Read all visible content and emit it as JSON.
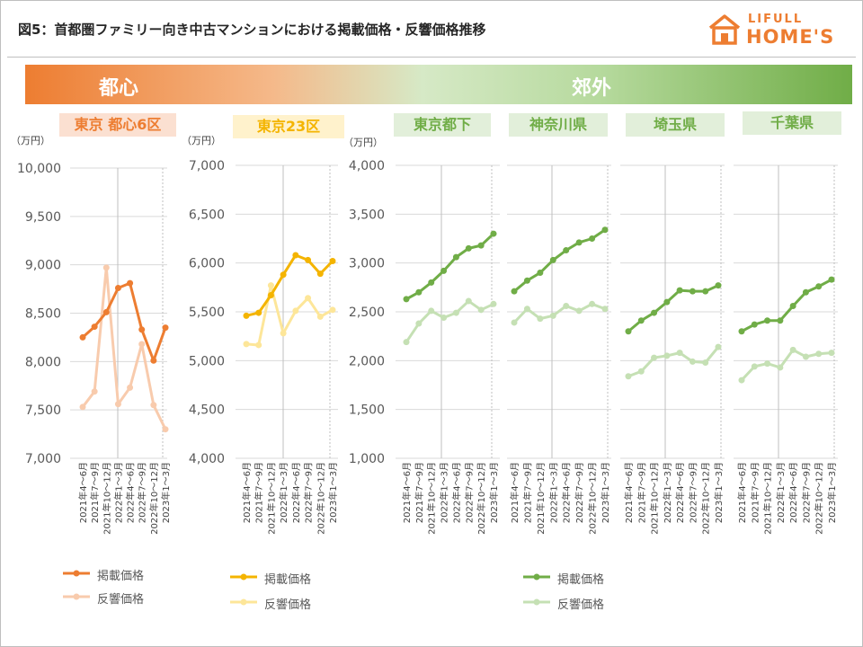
{
  "title": "図5：首都圏ファミリー向き中古マンションにおける掲載価格・反響価格推移",
  "logo": {
    "line1": "LIFULL",
    "line2": "HOME'S"
  },
  "band": {
    "left_label": "都心",
    "right_label": "郊外"
  },
  "region_label_colors": {
    "tokyo6": {
      "bg": "#fbe0d1",
      "fg": "#ed7d31"
    },
    "tokyo23": {
      "bg": "#fff2cc",
      "fg": "#f4b400"
    },
    "green": {
      "bg": "#e2efda",
      "fg": "#70ad47"
    }
  },
  "unit_label": "（万円）",
  "series_names": [
    "掲載価格",
    "反響価格"
  ],
  "chart_data": [
    {
      "type": "line",
      "region": "東京 都心6区",
      "x": [
        "2021年4～6月",
        "2021年7～9月",
        "2021年10～12月",
        "2022年1～3月",
        "2022年4～6月",
        "2022年7～9月",
        "2022年10～12月",
        "2023年1～3月"
      ],
      "ylim": [
        7000,
        10000
      ],
      "yticks": [
        "7,000",
        "7,500",
        "8,000",
        "8,500",
        "9,000",
        "9,500",
        "10,000"
      ],
      "colors": [
        "#ed7d31",
        "#f8cbad"
      ],
      "series": [
        {
          "name": "掲載価格",
          "values": [
            8250,
            8360,
            8510,
            8760,
            8810,
            8330,
            8010,
            8350
          ]
        },
        {
          "name": "反響価格",
          "values": [
            7530,
            7690,
            8970,
            7560,
            7730,
            8180,
            7550,
            7300
          ]
        }
      ]
    },
    {
      "type": "line",
      "region": "東京23区",
      "x": [
        "2021年4～6月",
        "2021年7～9月",
        "2021年10～12月",
        "2022年1～3月",
        "2022年4～6月",
        "2022年7～9月",
        "2022年10～12月",
        "2023年1～3月"
      ],
      "ylim": [
        4000,
        7000
      ],
      "yticks": [
        "4,000",
        "4,500",
        "5,000",
        "5,500",
        "6,000",
        "6,500",
        "7,000"
      ],
      "colors": [
        "#f4b400",
        "#fde699"
      ],
      "series": [
        {
          "name": "掲載価格",
          "values": [
            5460,
            5490,
            5670,
            5880,
            6080,
            6030,
            5890,
            6020
          ]
        },
        {
          "name": "反響価格",
          "values": [
            5170,
            5160,
            5770,
            5280,
            5510,
            5640,
            5450,
            5520
          ]
        }
      ]
    },
    {
      "type": "line",
      "region": "東京都下",
      "x": [
        "2021年4～6月",
        "2021年7～9月",
        "2021年10～12月",
        "2022年1～3月",
        "2022年4～6月",
        "2022年7～9月",
        "2022年10～12月",
        "2023年1～3月"
      ],
      "ylim": [
        1000,
        4000
      ],
      "yticks": [
        "1,000",
        "1,500",
        "2,000",
        "2,500",
        "3,000",
        "3,500",
        "4,000"
      ],
      "colors": [
        "#70ad47",
        "#c5e0b4"
      ],
      "series": [
        {
          "name": "掲載価格",
          "values": [
            2630,
            2700,
            2800,
            2920,
            3060,
            3150,
            3180,
            3300
          ]
        },
        {
          "name": "反響価格",
          "values": [
            2190,
            2380,
            2510,
            2440,
            2490,
            2610,
            2520,
            2580
          ]
        }
      ]
    },
    {
      "type": "line",
      "region": "神奈川県",
      "x": [
        "2021年4～6月",
        "2021年7～9月",
        "2021年10～12月",
        "2022年1～3月",
        "2022年4～6月",
        "2022年7～9月",
        "2022年10～12月",
        "2023年1～3月"
      ],
      "ylim": [
        1000,
        4000
      ],
      "yticks": [
        "1,000",
        "1,500",
        "2,000",
        "2,500",
        "3,000",
        "3,500",
        "4,000"
      ],
      "colors": [
        "#70ad47",
        "#c5e0b4"
      ],
      "series": [
        {
          "name": "掲載価格",
          "values": [
            2710,
            2820,
            2900,
            3030,
            3130,
            3210,
            3250,
            3340
          ]
        },
        {
          "name": "反響価格",
          "values": [
            2390,
            2530,
            2430,
            2460,
            2560,
            2510,
            2580,
            2530
          ]
        }
      ]
    },
    {
      "type": "line",
      "region": "埼玉県",
      "x": [
        "2021年4～6月",
        "2021年7～9月",
        "2021年10～12月",
        "2022年1～3月",
        "2022年4～6月",
        "2022年7～9月",
        "2022年10～12月",
        "2023年1～3月"
      ],
      "ylim": [
        1000,
        4000
      ],
      "yticks": [
        "1,000",
        "1,500",
        "2,000",
        "2,500",
        "3,000",
        "3,500",
        "4,000"
      ],
      "colors": [
        "#70ad47",
        "#c5e0b4"
      ],
      "series": [
        {
          "name": "掲載価格",
          "values": [
            2300,
            2410,
            2490,
            2600,
            2720,
            2710,
            2710,
            2770
          ]
        },
        {
          "name": "反響価格",
          "values": [
            1840,
            1890,
            2030,
            2050,
            2080,
            1990,
            1980,
            2140
          ]
        }
      ]
    },
    {
      "type": "line",
      "region": "千葉県",
      "x": [
        "2021年4～6月",
        "2021年7～9月",
        "2021年10～12月",
        "2022年1～3月",
        "2022年4～6月",
        "2022年7～9月",
        "2022年10～12月",
        "2023年1～3月"
      ],
      "ylim": [
        1000,
        4000
      ],
      "yticks": [
        "1,000",
        "1,500",
        "2,000",
        "2,500",
        "3,000",
        "3,500",
        "4,000"
      ],
      "colors": [
        "#70ad47",
        "#c5e0b4"
      ],
      "series": [
        {
          "name": "掲載価格",
          "values": [
            2300,
            2370,
            2410,
            2410,
            2560,
            2700,
            2760,
            2830
          ]
        },
        {
          "name": "反響価格",
          "values": [
            1800,
            1940,
            1970,
            1930,
            2110,
            2040,
            2070,
            2080
          ]
        }
      ]
    }
  ]
}
